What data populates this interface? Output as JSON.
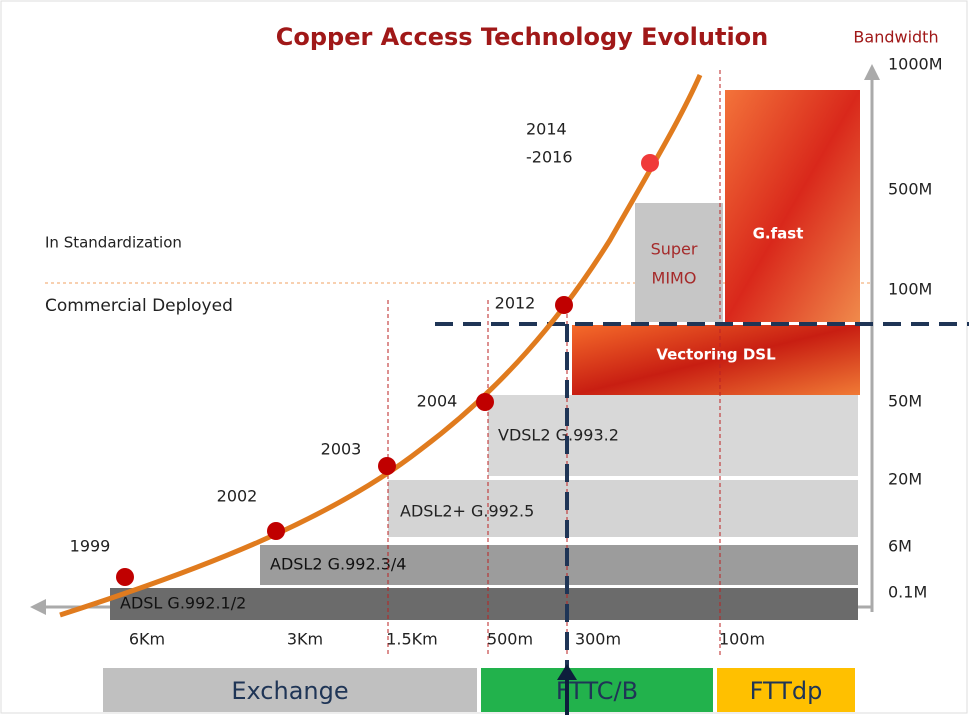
{
  "header": {
    "title": "Copper Access Technology Evolution",
    "axis_label": "Bandwidth"
  },
  "bandwidths": [
    "1000M",
    "500M",
    "100M",
    "50M",
    "20M",
    "6M",
    "0.1M"
  ],
  "distances": [
    "6Km",
    "3Km",
    "1.5Km",
    "500m",
    "300m",
    "100m"
  ],
  "years": [
    "1999",
    "2002",
    "2003",
    "2004",
    "2012"
  ],
  "year_range": [
    "2014",
    "-2016"
  ],
  "technologies": [
    "ADSL G.992.1/2",
    "ADSL2 G.992.3/4",
    "ADSL2+ G.992.5",
    "VDSL2 G.993.2",
    "Vectoring DSL",
    "G.fast"
  ],
  "super_mimo": [
    "Super",
    "MIMO"
  ],
  "status": [
    "In Standardization",
    "Commercial Deployed"
  ],
  "zones": [
    "Exchange",
    "FTTC/B",
    "FTTdp"
  ]
}
